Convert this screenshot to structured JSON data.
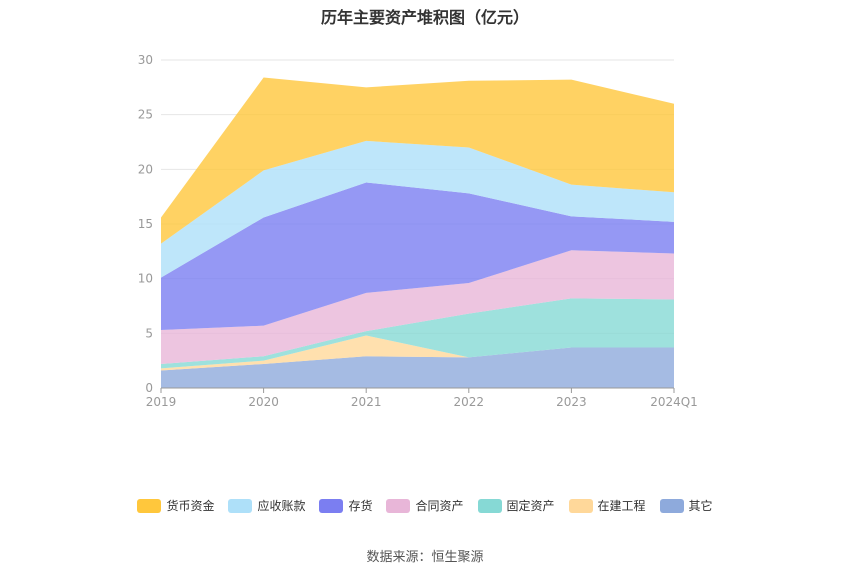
{
  "chart_data": {
    "type": "area",
    "stacked": true,
    "title": "历年主要资产堆积图（亿元）",
    "categories": [
      "2019",
      "2020",
      "2021",
      "2022",
      "2023",
      "2024Q1"
    ],
    "ylim": [
      0,
      30
    ],
    "yticks": [
      "0",
      "5",
      "10",
      "15",
      "20",
      "25",
      "30"
    ],
    "grid": true,
    "legend_position": "bottom",
    "series": [
      {
        "name": "其它",
        "color": "#8eaadc",
        "values": [
          1.6,
          2.2,
          2.9,
          2.8,
          3.7,
          3.7
        ]
      },
      {
        "name": "在建工程",
        "color": "#ffd89a",
        "values": [
          0.2,
          0.3,
          1.9,
          0.0,
          0.0,
          0.0
        ]
      },
      {
        "name": "固定资产",
        "color": "#86d9d5",
        "values": [
          0.4,
          0.4,
          0.4,
          4.0,
          4.5,
          4.4
        ]
      },
      {
        "name": "合同资产",
        "color": "#e8b6d8",
        "values": [
          3.1,
          2.8,
          3.5,
          2.8,
          4.4,
          4.2
        ]
      },
      {
        "name": "存货",
        "color": "#7b7ef1",
        "values": [
          4.8,
          9.9,
          10.1,
          8.2,
          3.1,
          2.9
        ]
      },
      {
        "name": "应收账款",
        "color": "#aee0f9",
        "values": [
          3.1,
          4.3,
          3.8,
          4.2,
          2.9,
          2.7
        ]
      },
      {
        "name": "货币资金",
        "color": "#ffc73c",
        "values": [
          2.4,
          8.5,
          4.9,
          6.1,
          9.6,
          8.1
        ]
      }
    ],
    "legend_order": [
      "货币资金",
      "应收账款",
      "存货",
      "合同资产",
      "固定资产",
      "在建工程",
      "其它"
    ]
  },
  "source": "数据来源：恒生聚源"
}
